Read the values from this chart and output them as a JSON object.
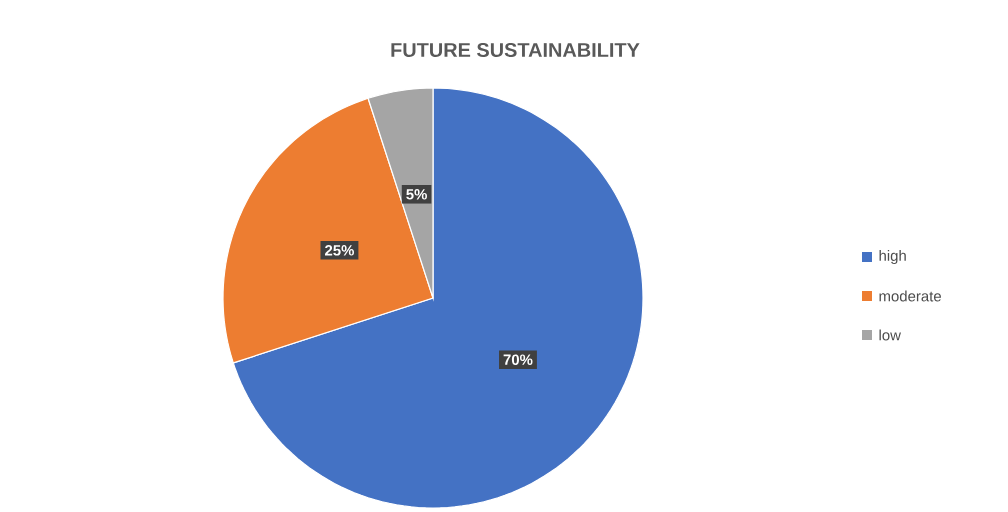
{
  "chart_data": {
    "type": "pie",
    "title": "FUTURE SUSTAINABILITY",
    "categories": [
      "high",
      "moderate",
      "low"
    ],
    "values": [
      70,
      25,
      5
    ],
    "value_labels": [
      "70%",
      "25%",
      "5%"
    ],
    "colors": [
      "#4472c4",
      "#ed7d31",
      "#a5a5a5"
    ],
    "legend": "right"
  }
}
